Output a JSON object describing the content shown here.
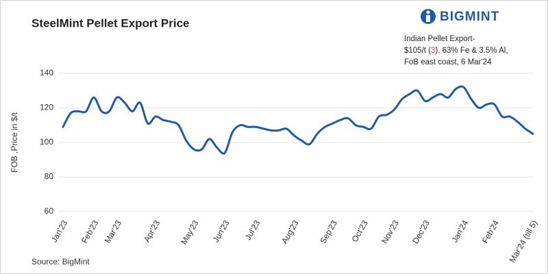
{
  "brand": "BIGMINT",
  "chart_data": {
    "type": "line",
    "title": "SteelMint Pellet Export Price",
    "y_label": "FOB ,Price in $/t",
    "source": "Source: BigMint",
    "annotation": [
      [
        "Indian Pellet Export-"
      ],
      [
        "$105/t (",
        "3",
        "), 63% Fe & 3.5% Al,"
      ],
      [
        "FoB east coast, 6 Mar'24"
      ]
    ],
    "annotation_highlight_color": "#e53935",
    "categories": [
      "Jan'23",
      null,
      null,
      null,
      "Feb'23",
      null,
      null,
      "Mar'23",
      null,
      null,
      null,
      null,
      "Apr'23",
      null,
      null,
      null,
      null,
      "May'23",
      null,
      null,
      null,
      "Jun'23",
      null,
      null,
      null,
      "Jul'23",
      null,
      null,
      null,
      null,
      "Aug'23",
      null,
      null,
      null,
      null,
      "Sep'23",
      null,
      null,
      null,
      "Oct'23",
      null,
      null,
      null,
      "Nov'23",
      null,
      null,
      null,
      "Dec'23",
      null,
      null,
      null,
      null,
      "Jan'24",
      null,
      null,
      null,
      "Feb'24",
      null,
      null,
      null,
      null,
      "Mar'24 (till 5)"
    ],
    "series": [
      {
        "name": "Price",
        "color": "#1f5aa6",
        "values": [
          109,
          117,
          118,
          118,
          126,
          118,
          118,
          126,
          123,
          118,
          123,
          111,
          115,
          113,
          112,
          110,
          101,
          96,
          96,
          102,
          97,
          94,
          106,
          110,
          109,
          109,
          108,
          107,
          107,
          108,
          104,
          101,
          99,
          105,
          109,
          111,
          113,
          114,
          110,
          109,
          108,
          115,
          116,
          119,
          125,
          128,
          130,
          124,
          126,
          128,
          126,
          131,
          132,
          125,
          120,
          122,
          122,
          115,
          115,
          112,
          108,
          105
        ]
      }
    ],
    "ylim": [
      60,
      140
    ],
    "yticks": [
      60,
      80,
      100,
      120,
      140
    ],
    "grid": true
  }
}
